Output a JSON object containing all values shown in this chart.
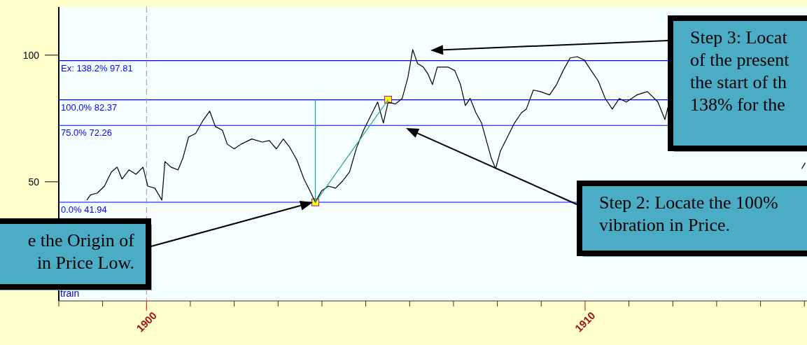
{
  "chart_data": {
    "type": "line",
    "xlim": [
      1898,
      1915.06
    ],
    "ylim": [
      3,
      119
    ],
    "yticks": [
      50,
      100
    ],
    "xticks": [
      {
        "value": 1898,
        "label": null
      },
      {
        "value": 1899,
        "label": null
      },
      {
        "value": 1900,
        "label": "1900"
      },
      {
        "value": 1901,
        "label": null
      },
      {
        "value": 1902,
        "label": null
      },
      {
        "value": 1903,
        "label": null
      },
      {
        "value": 1904,
        "label": null
      },
      {
        "value": 1905,
        "label": null
      },
      {
        "value": 1906,
        "label": null
      },
      {
        "value": 1907,
        "label": null
      },
      {
        "value": 1908,
        "label": null
      },
      {
        "value": 1909,
        "label": null
      },
      {
        "value": 1910,
        "label": "1910"
      },
      {
        "value": 1911,
        "label": null
      },
      {
        "value": 1912,
        "label": null
      },
      {
        "value": 1913,
        "label": null
      },
      {
        "value": 1914,
        "label": null
      },
      {
        "value": 1915,
        "label": null
      }
    ],
    "grid": false,
    "series": [
      {
        "color": "#000000",
        "x": [
          1898.64,
          1898.72,
          1898.88,
          1899.04,
          1899.2,
          1899.33,
          1899.44,
          1899.6,
          1899.76,
          1899.92,
          1900.03,
          1900.19,
          1900.35,
          1900.42,
          1900.56,
          1900.72,
          1900.83,
          1900.96,
          1901.12,
          1901.28,
          1901.44,
          1901.57,
          1901.73,
          1901.84,
          1902.0,
          1902.16,
          1902.4,
          1902.64,
          1902.8,
          1902.96,
          1903.12,
          1903.27,
          1903.43,
          1903.59,
          1903.75,
          1903.85,
          1903.99,
          1904.15,
          1904.31,
          1904.47,
          1904.63,
          1904.79,
          1904.95,
          1905.11,
          1905.27,
          1905.4,
          1905.51,
          1905.67,
          1905.83,
          1905.96,
          1906.07,
          1906.18,
          1906.31,
          1906.42,
          1906.52,
          1906.63,
          1906.87,
          1907.03,
          1907.16,
          1907.27,
          1907.38,
          1907.51,
          1907.64,
          1907.75,
          1907.86,
          1907.96,
          1908.07,
          1908.23,
          1908.39,
          1908.55,
          1908.66,
          1908.82,
          1908.98,
          1909.19,
          1909.35,
          1909.5,
          1909.66,
          1909.82,
          1909.98,
          1910.14,
          1910.3,
          1910.46,
          1910.62,
          1910.78,
          1910.94,
          1911.18,
          1911.42,
          1911.66,
          1911.82,
          1911.9,
          1913.0,
          1914.94,
          1915.02
        ],
        "values": [
          42.8,
          44.8,
          45.6,
          48.3,
          53.9,
          55.8,
          51.1,
          54.7,
          53.0,
          55.8,
          48.3,
          47.5,
          42.8,
          58.0,
          55.8,
          54.7,
          59.4,
          67.7,
          69.1,
          74.0,
          77.9,
          71.8,
          70.4,
          64.9,
          63.0,
          64.9,
          66.9,
          65.7,
          66.3,
          63.0,
          66.9,
          63.5,
          58.6,
          51.1,
          45.6,
          41.9,
          46.4,
          48.3,
          47.5,
          50.3,
          53.9,
          63.5,
          70.4,
          76.0,
          81.5,
          73.2,
          81.5,
          80.7,
          82.9,
          91.2,
          102.2,
          96.7,
          95.3,
          92.5,
          88.4,
          95.3,
          95.3,
          93.9,
          88.4,
          80.1,
          82.9,
          77.3,
          73.2,
          66.3,
          59.4,
          55.2,
          62.2,
          67.7,
          73.2,
          77.3,
          78.7,
          86.2,
          85.6,
          84.3,
          88.4,
          93.9,
          98.9,
          99.4,
          98.1,
          93.9,
          89.8,
          82.9,
          78.7,
          82.9,
          81.5,
          84.3,
          85.6,
          81.5,
          74.6,
          80.1,
          null,
          55.2,
          57.5
        ]
      },
      {
        "color": "#20a0a0",
        "x": [
          1903.85,
          1903.85,
          1905.51
        ],
        "values": [
          82.4,
          41.9,
          82.4
        ]
      },
      {
        "type": "scatter",
        "color": "#ffff00",
        "marker": "square",
        "x": [
          1903.85,
          1905.51
        ],
        "values": [
          41.9,
          82.4
        ]
      }
    ],
    "ref_lines": [
      {
        "axis": "y",
        "value": 97.81,
        "label": "Ex: 138.2% 97.81",
        "color": "#0000ff"
      },
      {
        "axis": "y",
        "value": 82.37,
        "label": "100.0% 82.37",
        "color": "#0000ff"
      },
      {
        "axis": "y",
        "value": 72.26,
        "label": "75.0% 72.26",
        "color": "#0000ff"
      },
      {
        "axis": "y",
        "value": 41.94,
        "label": "0.0% 41.94",
        "color": "#0000ff"
      },
      {
        "axis": "x",
        "value": 1900,
        "color": "#999999",
        "line_style": "dashed"
      }
    ],
    "annotations": [
      "e the Origin of\nin Price Low.",
      "Step 2: Locate the 100%\nvibration in Price.",
      "Step 3: Locat\nof the present\nthe start of th\n138% for the",
      "train"
    ]
  }
}
